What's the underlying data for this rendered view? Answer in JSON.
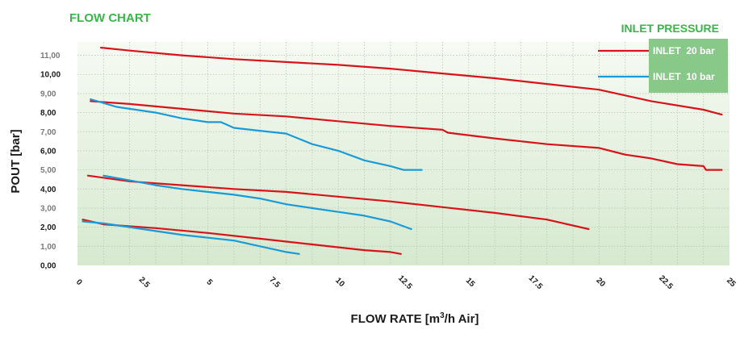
{
  "chart_data": {
    "type": "line",
    "title": "FLOW CHART",
    "xlabel": "FLOW RATE [m3/h Air]",
    "xlabel_parts": {
      "before": "FLOW RATE [m",
      "sup": "3",
      "after": "/h Air]"
    },
    "ylabel": "POUT [bar]",
    "xlim": [
      0,
      25
    ],
    "ylim": [
      0,
      11.7
    ],
    "x_ticks": [
      "0",
      "2.5",
      "5",
      "7.5",
      "10",
      "12.5",
      "15",
      "17.5",
      "20",
      "22.5",
      "25"
    ],
    "y_ticks": [
      "0,00",
      "1,00",
      "2,00",
      "3,00",
      "4,00",
      "5,00",
      "6,00",
      "7,00",
      "8,00",
      "9,00",
      "10,00",
      "11,00"
    ],
    "grid": true,
    "legend": {
      "title": "INLET PRESSURE",
      "placement": "top-right",
      "entries": [
        {
          "label": "INLET  20 bar",
          "color": "#d7141a"
        },
        {
          "label": "INLET  10 bar",
          "color": "#1a9bd7"
        }
      ]
    },
    "colors": {
      "red": "#d7141a",
      "blue": "#1a9bd7",
      "title_green": "#3ab54a",
      "legend_box": "#88c888"
    },
    "series": [
      {
        "group": "INLET  20 bar",
        "color": "#d7141a",
        "x": [
          0.9,
          2,
          4,
          6,
          8,
          10,
          12,
          14,
          16,
          18,
          20,
          21,
          22,
          24,
          24.7
        ],
        "y": [
          11.4,
          11.25,
          11.0,
          10.8,
          10.65,
          10.5,
          10.3,
          10.05,
          9.8,
          9.5,
          9.2,
          8.9,
          8.6,
          8.15,
          7.9
        ]
      },
      {
        "group": "INLET  20 bar",
        "color": "#d7141a",
        "x": [
          0.5,
          2,
          4,
          6,
          8,
          10,
          12,
          14,
          14.2,
          16,
          18,
          20,
          21,
          22,
          23,
          24,
          24.1,
          24.7
        ],
        "y": [
          8.6,
          8.45,
          8.2,
          7.95,
          7.8,
          7.55,
          7.3,
          7.1,
          6.95,
          6.65,
          6.35,
          6.15,
          5.8,
          5.6,
          5.3,
          5.2,
          5.0,
          5.0
        ]
      },
      {
        "group": "INLET  20 bar",
        "color": "#d7141a",
        "x": [
          0.4,
          2,
          4,
          6,
          8,
          10,
          12,
          14,
          16,
          18,
          19.6
        ],
        "y": [
          4.7,
          4.4,
          4.2,
          4.0,
          3.85,
          3.6,
          3.35,
          3.05,
          2.75,
          2.4,
          1.9
        ]
      },
      {
        "group": "INLET  20 bar",
        "color": "#d7141a",
        "x": [
          0.2,
          1,
          3,
          5,
          7,
          9,
          11,
          12,
          12.4
        ],
        "y": [
          2.4,
          2.15,
          1.95,
          1.7,
          1.4,
          1.1,
          0.8,
          0.7,
          0.6
        ]
      },
      {
        "group": "INLET  10 bar",
        "color": "#1a9bd7",
        "x": [
          0.5,
          1.5,
          3,
          4,
          5,
          5.5,
          6,
          7,
          8,
          9,
          10,
          11,
          12,
          12.5,
          13.2
        ],
        "y": [
          8.7,
          8.3,
          8.0,
          7.7,
          7.5,
          7.5,
          7.2,
          7.05,
          6.9,
          6.35,
          6.0,
          5.5,
          5.2,
          5.0,
          5.0
        ]
      },
      {
        "group": "INLET  10 bar",
        "color": "#1a9bd7",
        "x": [
          1.0,
          2,
          3,
          4,
          5,
          6,
          7,
          8,
          9,
          10,
          11,
          12,
          12.8
        ],
        "y": [
          4.7,
          4.45,
          4.2,
          4.0,
          3.85,
          3.7,
          3.5,
          3.2,
          3.0,
          2.8,
          2.6,
          2.3,
          1.9
        ]
      },
      {
        "group": "INLET  10 bar",
        "color": "#1a9bd7",
        "x": [
          0.2,
          1,
          2,
          3,
          4,
          5,
          6,
          7,
          8,
          8.5
        ],
        "y": [
          2.3,
          2.2,
          2.0,
          1.8,
          1.6,
          1.45,
          1.3,
          1.0,
          0.7,
          0.6
        ]
      }
    ]
  }
}
